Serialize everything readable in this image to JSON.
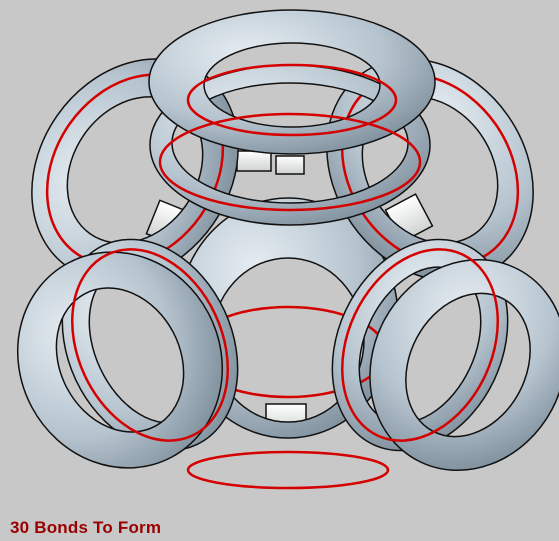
{
  "caption": {
    "text": "30 Bonds To Form"
  },
  "model": {
    "ring_count": 6,
    "bond_label_count": 30
  },
  "colors": {
    "background": "#c8c8c8",
    "torus_face": "#b6c4cf",
    "torus_highlight": "#e6edf2",
    "torus_shadow": "#6f818e",
    "edge_line": "#111111",
    "bond_line": "#d50000",
    "connector_face": "#eef0ef",
    "caption_text": "#9a0000"
  }
}
